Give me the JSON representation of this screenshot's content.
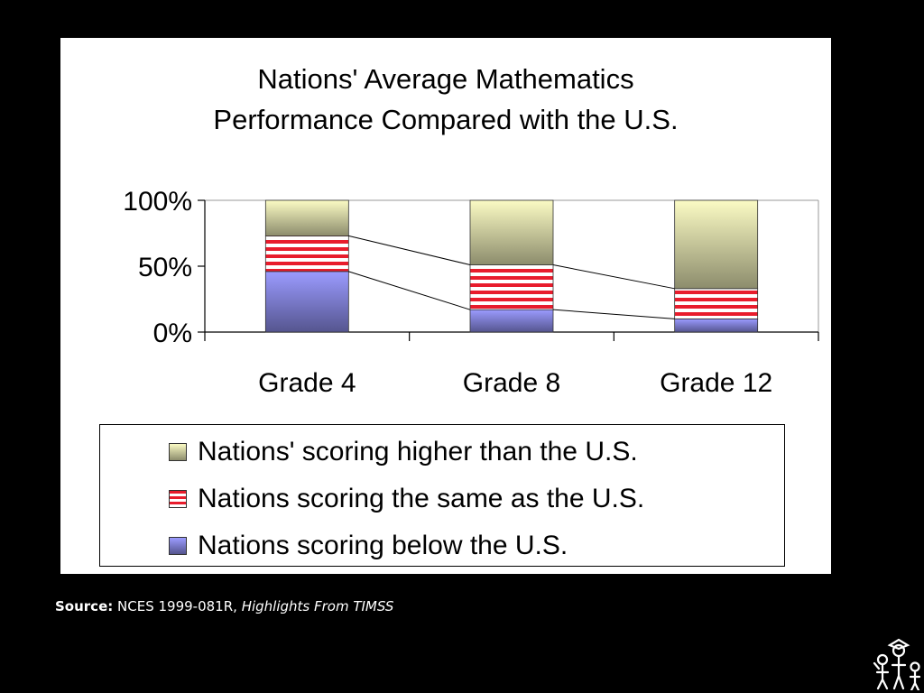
{
  "chart_data": {
    "type": "bar",
    "stacked": true,
    "title": "Nations' Average Mathematics Performance Compared with the U.S.",
    "title_lines": [
      "Nations' Average Mathematics",
      "Performance Compared with the U.S."
    ],
    "categories": [
      "Grade 4",
      "Grade 8",
      "Grade 12"
    ],
    "series": [
      {
        "name": "Nations scoring below the U.S.",
        "values": [
          46,
          17,
          10
        ],
        "color": "#8f8fe8"
      },
      {
        "name": "Nations scoring the same as the U.S.",
        "values": [
          27,
          34,
          23
        ],
        "color": "#e81c2c"
      },
      {
        "name": "Nations' scoring higher than the U.S.",
        "values": [
          27,
          49,
          67
        ],
        "color": "#f2f2b8"
      }
    ],
    "legend_order": [
      "Nations' scoring higher than the U.S.",
      "Nations scoring the same as the U.S.",
      "Nations scoring below the U.S."
    ],
    "y_ticks": [
      "0%",
      "50%",
      "100%"
    ],
    "ylim": [
      0,
      100
    ],
    "xlabel": "",
    "ylabel": "",
    "series_lines": true,
    "grid": false,
    "legend_position": "bottom"
  },
  "source": {
    "label": "Source:",
    "text": "NCES 1999-081R,",
    "italic": "Highlights From TIMSS"
  },
  "colors": {
    "background": "#000000",
    "panel": "#ffffff"
  }
}
